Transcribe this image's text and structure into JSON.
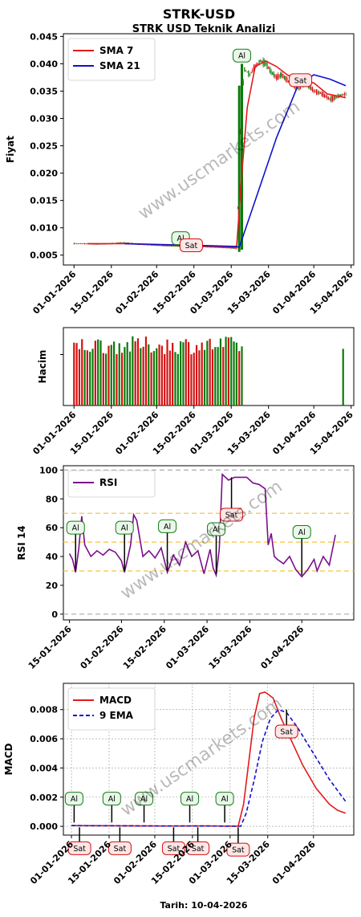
{
  "page": {
    "title": "STRK-USD",
    "subtitle": "STRK USD Teknik Analizi",
    "watermark": "www.uscmarkets.com",
    "footer": "Tarih: 10-04-2026"
  },
  "colors": {
    "sma7": "#e31a1c",
    "sma21": "#1010d0",
    "rsi": "#7b0f8a",
    "macd": "#e31a1c",
    "ema": "#1010d0",
    "up": "#0a7a0a",
    "down": "#d41010",
    "buy_box": "#e8f7e8",
    "buy_edge": "#1a7a1a",
    "sell_box": "#fde6e6",
    "sell_edge": "#d41010"
  },
  "chart_data": [
    {
      "id": "price",
      "type": "line",
      "ylabel": "Fiyat",
      "ylim": [
        0.0032,
        0.0455
      ],
      "yticks": [
        "0.005",
        "0.010",
        "0.015",
        "0.020",
        "0.025",
        "0.030",
        "0.035",
        "0.040",
        "0.045"
      ],
      "xlim": [
        "2025-12-28",
        "2026-04-16"
      ],
      "xticks": [
        "01-01-2026",
        "15-01-2026",
        "01-02-2026",
        "15-02-2026",
        "01-03-2026",
        "15-03-2026",
        "01-04-2026",
        "15-04-2026"
      ],
      "legend": {
        "position": "top-left",
        "entries": [
          "SMA 7",
          "SMA 21"
        ]
      },
      "close_series": [
        [
          "2026-01-01",
          0.0071
        ],
        [
          "2026-01-05",
          0.0071
        ],
        [
          "2026-01-10",
          0.007
        ],
        [
          "2026-01-15",
          0.0071
        ],
        [
          "2026-01-20",
          0.0073
        ],
        [
          "2026-01-25",
          0.007
        ],
        [
          "2026-02-01",
          0.0068
        ],
        [
          "2026-02-05",
          0.0067
        ],
        [
          "2026-02-10",
          0.0066
        ],
        [
          "2026-02-15",
          0.0067
        ],
        [
          "2026-02-20",
          0.0065
        ],
        [
          "2026-02-25",
          0.0064
        ],
        [
          "2026-03-01",
          0.0063
        ],
        [
          "2026-03-03",
          0.0062
        ],
        [
          "2026-03-04",
          0.021
        ],
        [
          "2026-03-05",
          0.034
        ],
        [
          "2026-03-06",
          0.039
        ],
        [
          "2026-03-08",
          0.038
        ],
        [
          "2026-03-10",
          0.0395
        ],
        [
          "2026-03-12",
          0.0405
        ],
        [
          "2026-03-14",
          0.04
        ],
        [
          "2026-03-16",
          0.0385
        ],
        [
          "2026-03-18",
          0.0375
        ],
        [
          "2026-03-20",
          0.038
        ],
        [
          "2026-03-23",
          0.0365
        ],
        [
          "2026-03-26",
          0.0355
        ],
        [
          "2026-03-29",
          0.0365
        ],
        [
          "2026-04-01",
          0.035
        ],
        [
          "2026-04-04",
          0.0345
        ],
        [
          "2026-04-07",
          0.0335
        ],
        [
          "2026-04-10",
          0.034
        ],
        [
          "2026-04-13",
          0.0345
        ]
      ],
      "series": [
        {
          "name": "SMA 7",
          "points": [
            [
              "2026-01-06",
              0.0071
            ],
            [
              "2026-01-20",
              0.0071
            ],
            [
              "2026-02-01",
              0.0069
            ],
            [
              "2026-02-15",
              0.0067
            ],
            [
              "2026-03-01",
              0.0064
            ],
            [
              "2026-03-03",
              0.0064
            ],
            [
              "2026-03-05",
              0.02
            ],
            [
              "2026-03-07",
              0.032
            ],
            [
              "2026-03-10",
              0.0395
            ],
            [
              "2026-03-14",
              0.0405
            ],
            [
              "2026-03-18",
              0.0395
            ],
            [
              "2026-03-22",
              0.038
            ],
            [
              "2026-03-26",
              0.037
            ],
            [
              "2026-04-01",
              0.0365
            ],
            [
              "2026-04-06",
              0.0345
            ],
            [
              "2026-04-13",
              0.0338
            ]
          ]
        },
        {
          "name": "SMA 21",
          "points": [
            [
              "2026-01-20",
              0.0071
            ],
            [
              "2026-02-15",
              0.0068
            ],
            [
              "2026-03-03",
              0.0066
            ],
            [
              "2026-03-04",
              0.0064
            ],
            [
              "2026-03-10",
              0.015
            ],
            [
              "2026-03-18",
              0.0265
            ],
            [
              "2026-03-26",
              0.036
            ],
            [
              "2026-04-01",
              0.038
            ],
            [
              "2026-04-07",
              0.0372
            ],
            [
              "2026-04-13",
              0.036
            ]
          ]
        }
      ],
      "signals": [
        {
          "label": "Al",
          "x": "2026-02-10",
          "y": 0.0081
        },
        {
          "label": "Sat",
          "x": "2026-02-14",
          "y": 0.0068
        },
        {
          "label": "Al",
          "x": "2026-03-05",
          "y": 0.0415
        },
        {
          "label": "Sat",
          "x": "2026-03-27",
          "y": 0.037
        }
      ]
    },
    {
      "id": "volume",
      "type": "bar",
      "ylabel": "Hacim",
      "xlim": [
        "2025-12-28",
        "2026-04-16"
      ],
      "xticks": [
        "01-01-2026",
        "15-01-2026",
        "01-02-2026",
        "15-02-2026",
        "01-03-2026",
        "15-03-2026",
        "01-04-2026",
        "15-04-2026"
      ],
      "ylim": [
        0,
        1.1
      ],
      "volume_series": {
        "start": "2026-01-01",
        "end": "2026-03-05",
        "typical": 0.85
      },
      "extra_bars": [
        [
          "2026-04-12",
          0.8
        ]
      ]
    },
    {
      "id": "rsi",
      "type": "line",
      "ylabel": "RSI 14",
      "ylim": [
        -4,
        103
      ],
      "yticks": [
        "0",
        "20",
        "40",
        "60",
        "80",
        "100"
      ],
      "xlim": [
        "2026-01-13",
        "2026-04-18"
      ],
      "xticks": [
        "15-01-2026",
        "01-02-2026",
        "15-02-2026",
        "01-03-2026",
        "15-03-2026",
        "01-04-2026"
      ],
      "hlines": [
        0,
        30,
        50,
        70,
        100
      ],
      "legend": {
        "position": "top-left",
        "entries": [
          "RSI"
        ]
      },
      "series": [
        {
          "name": "RSI",
          "points": [
            [
              "2026-01-15",
              42
            ],
            [
              "2026-01-16",
              38
            ],
            [
              "2026-01-17",
              29
            ],
            [
              "2026-01-18",
              45
            ],
            [
              "2026-01-19",
              68
            ],
            [
              "2026-01-20",
              48
            ],
            [
              "2026-01-22",
              40
            ],
            [
              "2026-01-24",
              44
            ],
            [
              "2026-01-26",
              41
            ],
            [
              "2026-01-28",
              45
            ],
            [
              "2026-01-30",
              43
            ],
            [
              "2026-02-01",
              37
            ],
            [
              "2026-02-02",
              29
            ],
            [
              "2026-02-04",
              48
            ],
            [
              "2026-02-05",
              69
            ],
            [
              "2026-02-06",
              65
            ],
            [
              "2026-02-08",
              40
            ],
            [
              "2026-02-10",
              44
            ],
            [
              "2026-02-12",
              39
            ],
            [
              "2026-02-14",
              46
            ],
            [
              "2026-02-16",
              29
            ],
            [
              "2026-02-18",
              41
            ],
            [
              "2026-02-20",
              34
            ],
            [
              "2026-02-22",
              50
            ],
            [
              "2026-02-24",
              40
            ],
            [
              "2026-02-26",
              44
            ],
            [
              "2026-02-28",
              28
            ],
            [
              "2026-03-02",
              45
            ],
            [
              "2026-03-03",
              32
            ],
            [
              "2026-03-04",
              27
            ],
            [
              "2026-03-05",
              45
            ],
            [
              "2026-03-06",
              97
            ],
            [
              "2026-03-08",
              93
            ],
            [
              "2026-03-10",
              95
            ],
            [
              "2026-03-14",
              95
            ],
            [
              "2026-03-16",
              91
            ],
            [
              "2026-03-18",
              90
            ],
            [
              "2026-03-20",
              87
            ],
            [
              "2026-03-21",
              48
            ],
            [
              "2026-03-22",
              56
            ],
            [
              "2026-03-23",
              40
            ],
            [
              "2026-03-24",
              38
            ],
            [
              "2026-03-26",
              35
            ],
            [
              "2026-03-28",
              40
            ],
            [
              "2026-03-30",
              31
            ],
            [
              "2026-04-01",
              26
            ],
            [
              "2026-04-03",
              31
            ],
            [
              "2026-04-05",
              38
            ],
            [
              "2026-04-06",
              30
            ],
            [
              "2026-04-08",
              40
            ],
            [
              "2026-04-10",
              34
            ],
            [
              "2026-04-12",
              55
            ]
          ]
        }
      ],
      "signals": [
        {
          "label": "Al",
          "x": "2026-01-17",
          "y": 60
        },
        {
          "label": "Al",
          "x": "2026-02-02",
          "y": 60
        },
        {
          "label": "Al",
          "x": "2026-02-16",
          "y": 61
        },
        {
          "label": "Al",
          "x": "2026-03-04",
          "y": 59
        },
        {
          "label": "Sat",
          "x": "2026-03-09",
          "y": 69
        },
        {
          "label": "Al",
          "x": "2026-04-01",
          "y": 57
        }
      ]
    },
    {
      "id": "macd",
      "type": "line",
      "ylabel": "MACD",
      "ylim": [
        -0.0006,
        0.0098
      ],
      "yticks": [
        "0.000",
        "0.002",
        "0.004",
        "0.006",
        "0.008"
      ],
      "xlim": [
        "2025-12-29",
        "2026-04-16"
      ],
      "xticks": [
        "01-01-2026",
        "15-01-2026",
        "01-02-2026",
        "15-02-2026",
        "01-03-2026",
        "15-03-2026",
        "01-04-2026"
      ],
      "legend": {
        "position": "top-left",
        "entries": [
          "MACD",
          "9 EMA"
        ]
      },
      "series": [
        {
          "name": "MACD",
          "points": [
            [
              "2026-01-01",
              5e-05
            ],
            [
              "2026-01-20",
              4e-05
            ],
            [
              "2026-02-05",
              2e-05
            ],
            [
              "2026-02-20",
              3e-05
            ],
            [
              "2026-03-04",
              1e-05
            ],
            [
              "2026-03-06",
              0.0015
            ],
            [
              "2026-03-08",
              0.0045
            ],
            [
              "2026-03-10",
              0.0075
            ],
            [
              "2026-03-12",
              0.0091
            ],
            [
              "2026-03-14",
              0.0092
            ],
            [
              "2026-03-17",
              0.0088
            ],
            [
              "2026-03-20",
              0.0074
            ],
            [
              "2026-03-24",
              0.0058
            ],
            [
              "2026-03-28",
              0.0042
            ],
            [
              "2026-04-02",
              0.0026
            ],
            [
              "2026-04-07",
              0.0015
            ],
            [
              "2026-04-10",
              0.0011
            ],
            [
              "2026-04-13",
              0.0009
            ]
          ]
        },
        {
          "name": "9 EMA",
          "points": [
            [
              "2026-01-01",
              5e-05
            ],
            [
              "2026-01-20",
              4e-05
            ],
            [
              "2026-02-05",
              2e-05
            ],
            [
              "2026-02-20",
              2e-05
            ],
            [
              "2026-03-05",
              1e-05
            ],
            [
              "2026-03-07",
              0.0009
            ],
            [
              "2026-03-10",
              0.0032
            ],
            [
              "2026-03-13",
              0.0058
            ],
            [
              "2026-03-16",
              0.0074
            ],
            [
              "2026-03-19",
              0.008
            ],
            [
              "2026-03-22",
              0.0078
            ],
            [
              "2026-03-26",
              0.0068
            ],
            [
              "2026-04-01",
              0.005
            ],
            [
              "2026-04-07",
              0.0032
            ],
            [
              "2026-04-13",
              0.0017
            ]
          ]
        }
      ],
      "signals": [
        {
          "label": "Al",
          "x": "2026-01-02",
          "y": 0.0019
        },
        {
          "label": "Sat",
          "x": "2026-01-04",
          "y": -0.0015
        },
        {
          "label": "Al",
          "x": "2026-01-16",
          "y": 0.0019
        },
        {
          "label": "Sat",
          "x": "2026-01-19",
          "y": -0.0015
        },
        {
          "label": "Al",
          "x": "2026-01-28",
          "y": 0.0019
        },
        {
          "label": "Sat",
          "x": "2026-02-08",
          "y": -0.0015
        },
        {
          "label": "Al",
          "x": "2026-02-14",
          "y": 0.0019
        },
        {
          "label": "Sat",
          "x": "2026-02-17",
          "y": -0.0015
        },
        {
          "label": "Al",
          "x": "2026-02-27",
          "y": 0.0019
        },
        {
          "label": "Sat",
          "x": "2026-03-04",
          "y": -0.0016
        },
        {
          "label": "Sat",
          "x": "2026-03-22",
          "y": 0.0065
        }
      ]
    }
  ]
}
